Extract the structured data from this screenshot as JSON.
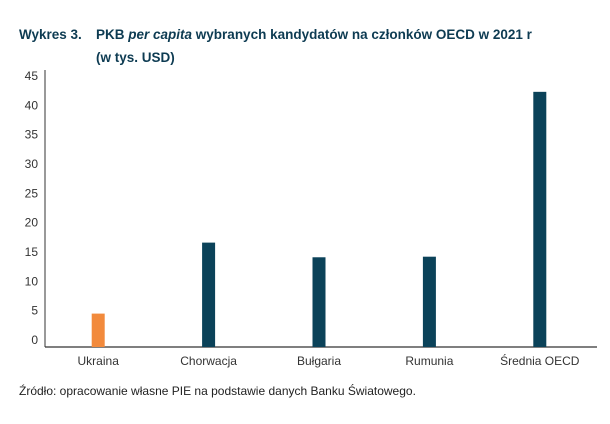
{
  "chart_data": {
    "type": "bar",
    "title_number": "Wykres 3.",
    "title_prefix": "PKB ",
    "title_italic": "per capita",
    "title_suffix": " wybranych kandydatów na członków OECD w 2021 r",
    "subtitle": "(w tys. USD)",
    "categories": [
      "Ukraina",
      "Chorwacja",
      "Bułgaria",
      "Rumunia",
      "Średnia OECD"
    ],
    "values": [
      4.5,
      16.6,
      14.1,
      14.2,
      42.3
    ],
    "colors": [
      "#f28a3c",
      "#0b4259",
      "#0b4259",
      "#0b4259",
      "#0b4259"
    ],
    "ylim": [
      0,
      45
    ],
    "yticks": [
      "0",
      "5",
      "10",
      "15",
      "20",
      "25",
      "30",
      "35",
      "40",
      "45"
    ],
    "xlabel": "",
    "ylabel": "",
    "grid": false,
    "source": "Źródło: opracowanie własne PIE na podstawie danych Banku Światowego."
  }
}
